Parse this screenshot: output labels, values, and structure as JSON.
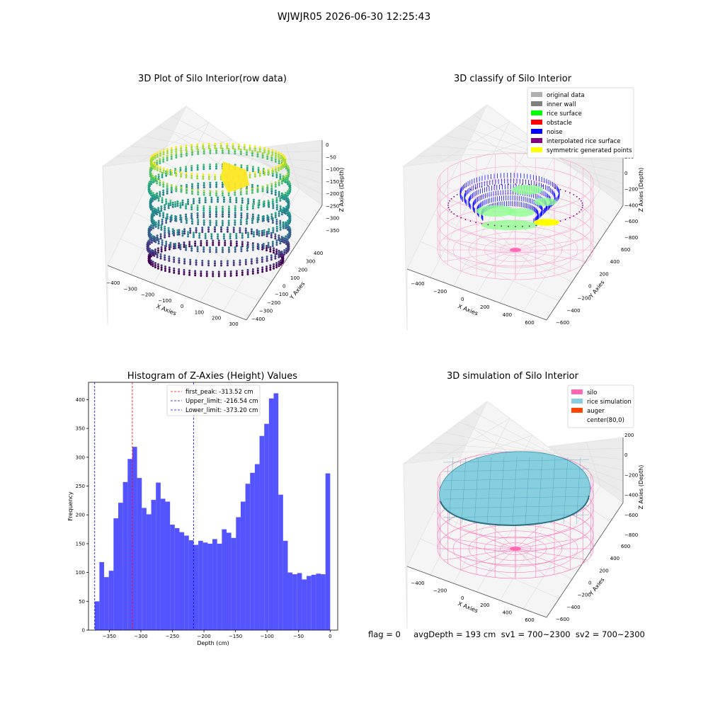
{
  "suptitle": "WJWJR05 2026-06-30 12:25:43",
  "footer": "flag = 0     avgDepth = 193 cm  sv1 = 700~2300  sv2 = 700~2300",
  "colors": {
    "hist_bar": "#4b4bff",
    "first_peak": "#ff0000",
    "limit": "#0000ff",
    "silo": "#ff69b4",
    "rice_simulation": "#87cedf",
    "auger": "#ff4500",
    "original": "#b0b0b0",
    "inner_wall": "#808080",
    "rice_surface": "#00ff00",
    "obstacle": "#ff0000",
    "noise": "#0000ff",
    "interpolated": "#800080",
    "symmetric": "#ffff00"
  },
  "chart_data": [
    {
      "type": "scatter",
      "title": "3D Plot of Silo Interior(row data)",
      "xlabel": "X Axies",
      "ylabel": "Y Axies",
      "zlabel": "Z Axies (Depth)",
      "x_ticks": [
        "−400",
        "−300",
        "−200",
        "−100",
        "0",
        "100",
        "200",
        "300"
      ],
      "y_ticks": [
        "400",
        "300",
        "200",
        "100",
        "0",
        "−100",
        "−200",
        "−300",
        "−400"
      ],
      "z_ticks": [
        "0",
        "−50",
        "−100",
        "−150",
        "−200",
        "−250",
        "−300",
        "−350"
      ],
      "colormap": "viridis"
    },
    {
      "type": "scatter",
      "title": "3D classify of Silo Interior",
      "xlabel": "X Axies",
      "ylabel": "Y Axies",
      "zlabel": "Z Axies (Depth)",
      "x_ticks": [
        "−400",
        "−200",
        "0",
        "200",
        "400",
        "600"
      ],
      "y_ticks": [
        "600",
        "400",
        "200",
        "0",
        "−200",
        "−400",
        "−600"
      ],
      "z_ticks": [
        "200",
        "0",
        "−200",
        "−400",
        "−600",
        "−800"
      ],
      "legend_position": "top-right",
      "legend": [
        {
          "label": "original data",
          "color": "#b0b0b0"
        },
        {
          "label": "inner wall",
          "color": "#808080"
        },
        {
          "label": "rice surface",
          "color": "#00ff00"
        },
        {
          "label": "obstacle",
          "color": "#ff0000"
        },
        {
          "label": "noise",
          "color": "#0000ff"
        },
        {
          "label": "interpolated rice surface",
          "color": "#800080"
        },
        {
          "label": "symmetric generated points",
          "color": "#ffff00"
        }
      ]
    },
    {
      "type": "bar",
      "title": "Histogram of Z-Axies (Height) Values",
      "xlabel": "Depth (cm)",
      "ylabel": "Frequency",
      "xlim": [
        -383,
        12
      ],
      "ylim": [
        0,
        430
      ],
      "x_ticks": [
        -350,
        -300,
        -250,
        -200,
        -150,
        -100,
        -50,
        0
      ],
      "x_tick_labels": [
        "−350",
        "−300",
        "−250",
        "−200",
        "−150",
        "−100",
        "−50",
        "0"
      ],
      "y_ticks": [
        0,
        50,
        100,
        150,
        200,
        250,
        300,
        350,
        400
      ],
      "bin_start": -373.2,
      "bin_width": 7.465,
      "values": [
        50,
        118,
        92,
        103,
        194,
        221,
        257,
        297,
        318,
        264,
        212,
        201,
        226,
        256,
        228,
        223,
        183,
        177,
        170,
        164,
        156,
        148,
        155,
        152,
        150,
        158,
        150,
        175,
        169,
        160,
        196,
        223,
        254,
        273,
        288,
        337,
        358,
        402,
        411,
        235,
        155,
        100,
        97,
        99,
        88,
        94,
        96,
        98,
        97,
        272
      ],
      "legend_position": "top-center",
      "lines": [
        {
          "label": "first_peak: -313.52 cm",
          "x": -313.52,
          "color": "#ff0000"
        },
        {
          "label": "Upper_limit: -216.54 cm",
          "x": -216.54,
          "color": "#0000ff"
        },
        {
          "label": "Lower_limit: -373.20 cm",
          "x": -373.2,
          "color": "#0000ff"
        }
      ]
    },
    {
      "type": "area",
      "title": "3D simulation of Silo Interior",
      "xlabel": "X Axies",
      "ylabel": "Y Axies",
      "zlabel": "Z Axies (Depth)",
      "x_ticks": [
        "−400",
        "−200",
        "0",
        "200",
        "400",
        "600"
      ],
      "y_ticks": [
        "600",
        "400",
        "200",
        "0",
        "−200",
        "−400",
        "−600"
      ],
      "z_ticks": [
        "200",
        "0",
        "−200",
        "−400",
        "−600",
        "−800"
      ],
      "legend_position": "top-right",
      "legend": [
        {
          "label": "silo",
          "color": "#ff69b4"
        },
        {
          "label": "rice simulation",
          "color": "#87cedf"
        },
        {
          "label": "auger",
          "color": "#ff4500"
        },
        {
          "label": "center(80,0)",
          "color": "none"
        }
      ]
    }
  ]
}
